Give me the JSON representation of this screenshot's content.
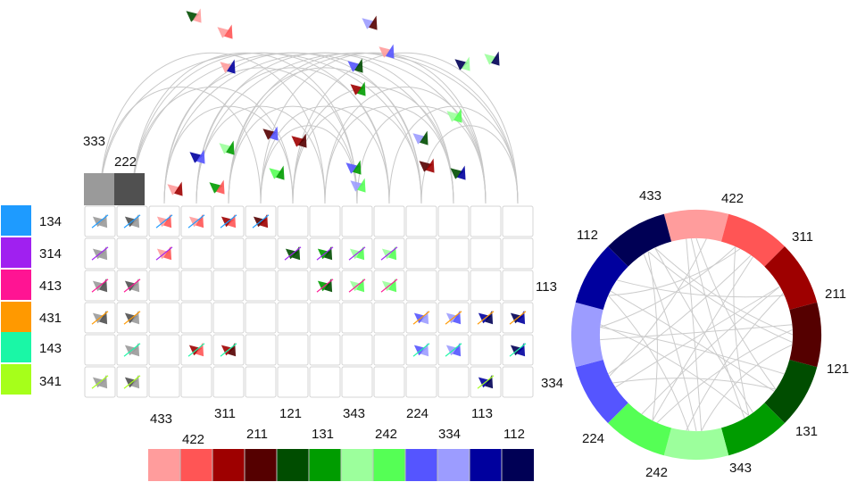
{
  "row_codes": [
    {
      "code": "134",
      "color": "#1E9BFF"
    },
    {
      "code": "314",
      "color": "#A020F0"
    },
    {
      "code": "413",
      "color": "#FF1493"
    },
    {
      "code": "431",
      "color": "#FF9900"
    },
    {
      "code": "143",
      "color": "#1AF7A6"
    },
    {
      "code": "341",
      "color": "#A6FF1A"
    }
  ],
  "top_codes": [
    {
      "code": "333",
      "color": "#9A9A9A"
    },
    {
      "code": "222",
      "color": "#505050"
    }
  ],
  "column_codes": [
    {
      "code": "433",
      "color": "#FF9C9C"
    },
    {
      "code": "422",
      "color": "#FF5555"
    },
    {
      "code": "311",
      "color": "#9E0000"
    },
    {
      "code": "211",
      "color": "#550000"
    },
    {
      "code": "121",
      "color": "#004D00"
    },
    {
      "code": "131",
      "color": "#009C00"
    },
    {
      "code": "343",
      "color": "#9CFF9C"
    },
    {
      "code": "242",
      "color": "#55FF55"
    },
    {
      "code": "224",
      "color": "#5555FF"
    },
    {
      "code": "334",
      "color": "#9C9CFF"
    },
    {
      "code": "113",
      "color": "#00009E"
    },
    {
      "code": "112",
      "color": "#000055"
    }
  ],
  "ring_order": [
    "433",
    "422",
    "311",
    "211",
    "121",
    "131",
    "343",
    "242",
    "224",
    "334",
    "113",
    "112"
  ]
}
